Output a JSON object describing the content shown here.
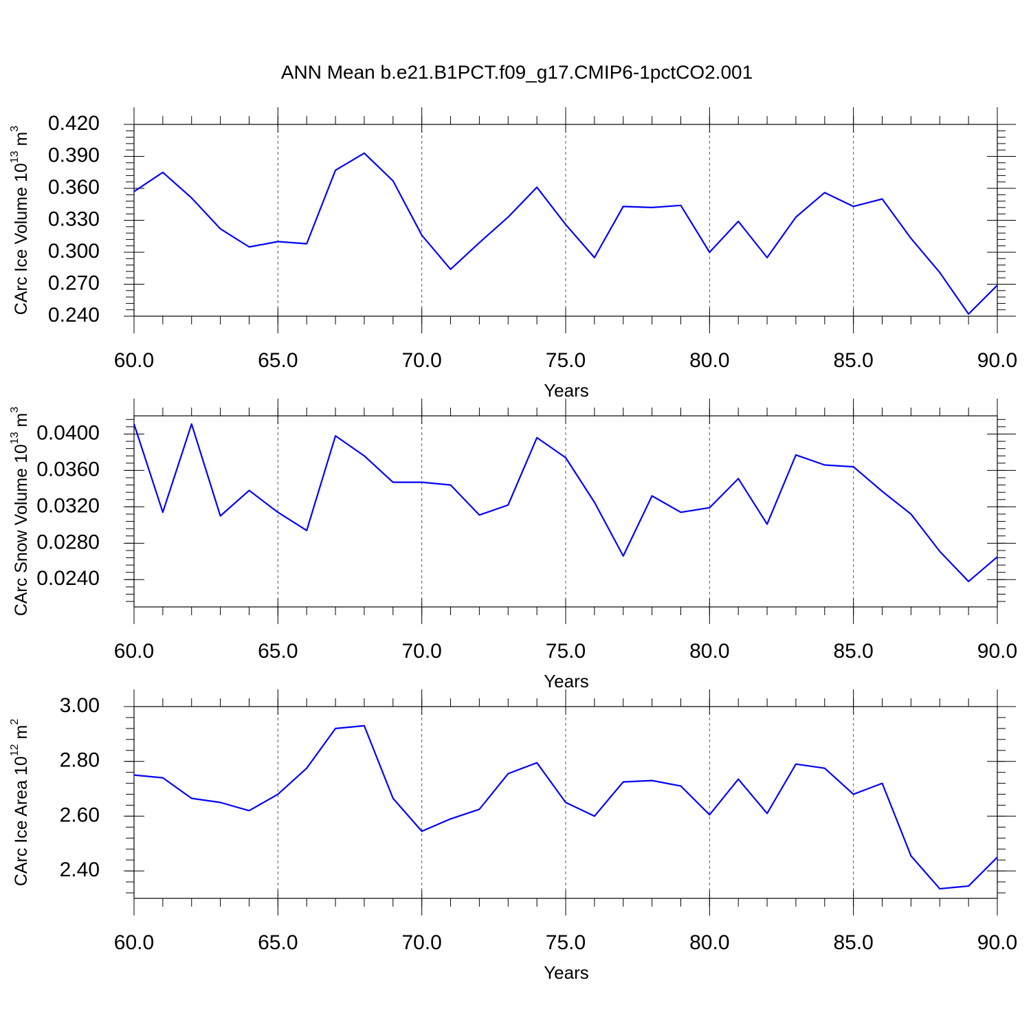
{
  "chart_data": [
    {
      "type": "line",
      "title": "ANN Mean b.e21.B1PCT.f09_g17.CMIP6-1pctCO2.001",
      "ylabel": [
        "CArc Ice Volume 10",
        "13",
        " m",
        "3"
      ],
      "xlabel": "Years",
      "x": [
        60,
        61,
        62,
        63,
        64,
        65,
        66,
        67,
        68,
        69,
        70,
        71,
        72,
        73,
        74,
        75,
        76,
        77,
        78,
        79,
        80,
        81,
        82,
        83,
        84,
        85,
        86,
        87,
        88,
        89,
        90
      ],
      "series": [
        {
          "color": "#0000ff",
          "values": [
            0.357,
            0.375,
            0.351,
            0.322,
            0.305,
            0.31,
            0.308,
            0.377,
            0.393,
            0.367,
            0.316,
            0.284,
            0.309,
            0.333,
            0.361,
            0.326,
            0.295,
            0.343,
            0.342,
            0.344,
            0.3,
            0.329,
            0.295,
            0.333,
            0.356,
            0.343,
            0.35,
            0.313,
            0.281,
            0.242,
            0.269
          ]
        }
      ],
      "xlim": [
        60,
        90
      ],
      "ylim": [
        0.24,
        0.42
      ],
      "xticks": [
        {
          "value": 60,
          "label": "60.0"
        },
        {
          "value": 65,
          "label": "65.0"
        },
        {
          "value": 70,
          "label": "70.0"
        },
        {
          "value": 75,
          "label": "75.0"
        },
        {
          "value": 80,
          "label": "80.0"
        },
        {
          "value": 85,
          "label": "85.0"
        },
        {
          "value": 90,
          "label": "90.0"
        }
      ],
      "yticks": [
        {
          "value": 0.24,
          "label": "0.240"
        },
        {
          "value": 0.27,
          "label": "0.270"
        },
        {
          "value": 0.3,
          "label": "0.300"
        },
        {
          "value": 0.33,
          "label": "0.330"
        },
        {
          "value": 0.36,
          "label": "0.360"
        },
        {
          "value": 0.39,
          "label": "0.390"
        },
        {
          "value": 0.42,
          "label": "0.420"
        }
      ],
      "xgrid": true
    },
    {
      "type": "line",
      "ylabel": [
        "CArc Snow Volume 10",
        "13",
        " m",
        "3"
      ],
      "xlabel": "Years",
      "x": [
        60,
        61,
        62,
        63,
        64,
        65,
        66,
        67,
        68,
        69,
        70,
        71,
        72,
        73,
        74,
        75,
        76,
        77,
        78,
        79,
        80,
        81,
        82,
        83,
        84,
        85,
        86,
        87,
        88,
        89,
        90
      ],
      "series": [
        {
          "color": "#0000ff",
          "values": [
            0.0411,
            0.0314,
            0.0411,
            0.031,
            0.0338,
            0.0314,
            0.0294,
            0.0398,
            0.0376,
            0.0347,
            0.0347,
            0.0344,
            0.0311,
            0.0322,
            0.0396,
            0.0374,
            0.0325,
            0.0266,
            0.0332,
            0.0314,
            0.0319,
            0.0351,
            0.0301,
            0.0377,
            0.0366,
            0.0364,
            0.0337,
            0.0312,
            0.0271,
            0.0238,
            0.0265
          ]
        }
      ],
      "xlim": [
        60,
        90
      ],
      "ylim": [
        0.021,
        0.042
      ],
      "xticks": [
        {
          "value": 60,
          "label": "60.0"
        },
        {
          "value": 65,
          "label": "65.0"
        },
        {
          "value": 70,
          "label": "70.0"
        },
        {
          "value": 75,
          "label": "75.0"
        },
        {
          "value": 80,
          "label": "80.0"
        },
        {
          "value": 85,
          "label": "85.0"
        },
        {
          "value": 90,
          "label": "90.0"
        }
      ],
      "yticks": [
        {
          "value": 0.024,
          "label": "0.0240"
        },
        {
          "value": 0.028,
          "label": "0.0280"
        },
        {
          "value": 0.032,
          "label": "0.0320"
        },
        {
          "value": 0.036,
          "label": "0.0360"
        },
        {
          "value": 0.04,
          "label": "0.0400"
        }
      ],
      "xgrid": true
    },
    {
      "type": "line",
      "ylabel": [
        "CArc Ice Area 10",
        "12",
        " m",
        "2"
      ],
      "xlabel": "Years",
      "x": [
        60,
        61,
        62,
        63,
        64,
        65,
        66,
        67,
        68,
        69,
        70,
        71,
        72,
        73,
        74,
        75,
        76,
        77,
        78,
        79,
        80,
        81,
        82,
        83,
        84,
        85,
        86,
        87,
        88,
        89,
        90
      ],
      "series": [
        {
          "color": "#0000ff",
          "values": [
            2.75,
            2.74,
            2.665,
            2.65,
            2.62,
            2.68,
            2.775,
            2.92,
            2.93,
            2.665,
            2.545,
            2.59,
            2.625,
            2.755,
            2.795,
            2.65,
            2.6,
            2.725,
            2.73,
            2.71,
            2.605,
            2.735,
            2.61,
            2.79,
            2.775,
            2.68,
            2.72,
            2.455,
            2.335,
            2.345,
            2.45
          ]
        }
      ],
      "xlim": [
        60,
        90
      ],
      "ylim": [
        2.3,
        3.0
      ],
      "xticks": [
        {
          "value": 60,
          "label": "60.0"
        },
        {
          "value": 65,
          "label": "65.0"
        },
        {
          "value": 70,
          "label": "70.0"
        },
        {
          "value": 75,
          "label": "75.0"
        },
        {
          "value": 80,
          "label": "80.0"
        },
        {
          "value": 85,
          "label": "85.0"
        },
        {
          "value": 90,
          "label": "90.0"
        }
      ],
      "yticks": [
        {
          "value": 2.4,
          "label": "2.40"
        },
        {
          "value": 2.6,
          "label": "2.60"
        },
        {
          "value": 2.8,
          "label": "2.80"
        },
        {
          "value": 3.0,
          "label": "3.00"
        }
      ],
      "xgrid": true
    }
  ]
}
